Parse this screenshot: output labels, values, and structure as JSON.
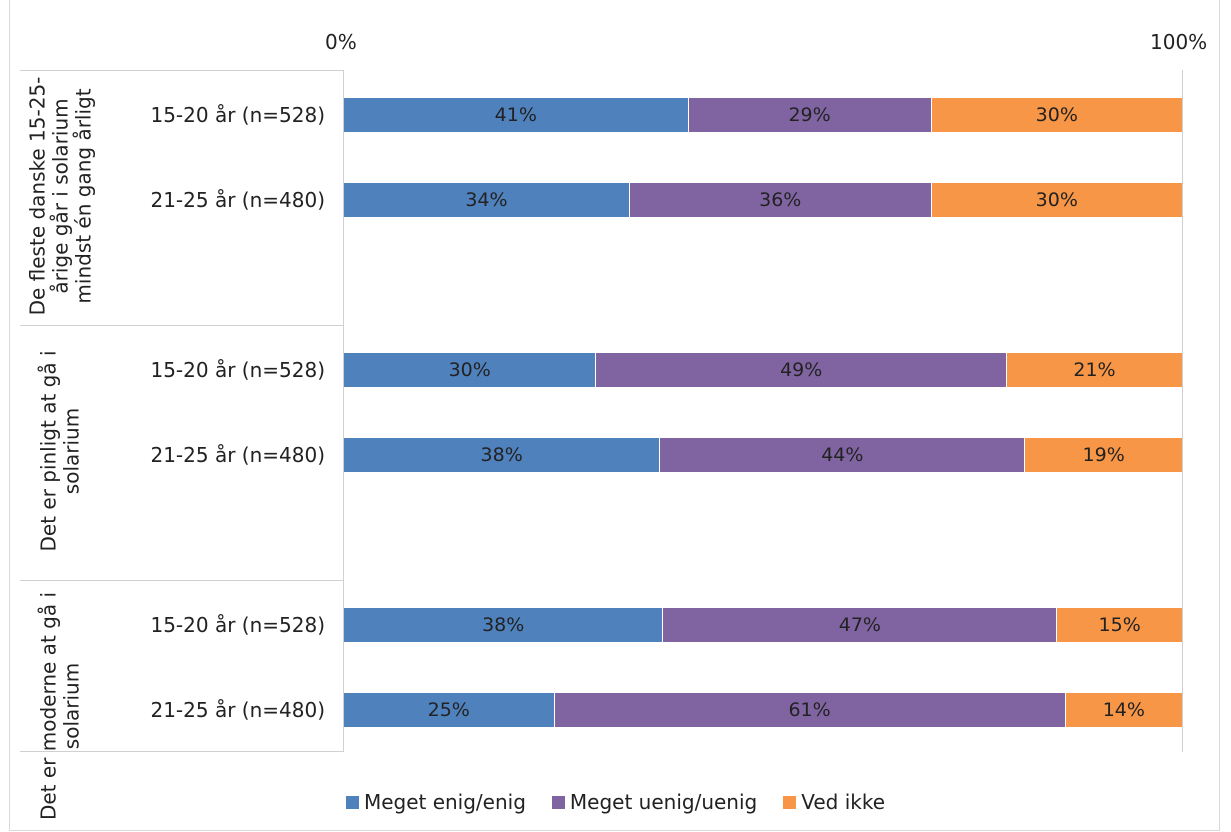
{
  "chart_data": {
    "type": "bar",
    "orientation": "horizontal",
    "stacked": true,
    "title": "",
    "xlim": [
      0,
      100
    ],
    "axis_tick_labels": {
      "min": "0%",
      "max": "100%"
    },
    "legend_position": "bottom",
    "series": [
      {
        "name": "Meget enig/enig",
        "color": "#4f81bd"
      },
      {
        "name": "Meget uenig/uenig",
        "color": "#8064a2"
      },
      {
        "name": "Ved ikke",
        "color": "#f79646"
      }
    ],
    "groups": [
      {
        "label": "De fleste danske 15-25-årige går i solarium mindst én gang årligt",
        "rows": [
          {
            "label": "15-20 år (n=528)",
            "values": [
              41,
              29,
              30
            ],
            "labels": [
              "41%",
              "29%",
              "30%"
            ]
          },
          {
            "label": "21-25 år (n=480)",
            "values": [
              34,
              36,
              30
            ],
            "labels": [
              "34%",
              "36%",
              "30%"
            ]
          }
        ]
      },
      {
        "label": "Det er pinligt at gå i solarium",
        "rows": [
          {
            "label": "15-20 år (n=528)",
            "values": [
              30,
              49,
              21
            ],
            "labels": [
              "30%",
              "49%",
              "21%"
            ]
          },
          {
            "label": "21-25 år (n=480)",
            "values": [
              38,
              44,
              19
            ],
            "labels": [
              "38%",
              "44%",
              "19%"
            ]
          }
        ]
      },
      {
        "label": "Det er moderne at gå i solarium",
        "rows": [
          {
            "label": "15-20 år (n=528)",
            "values": [
              38,
              47,
              15
            ],
            "labels": [
              "38%",
              "47%",
              "15%"
            ]
          },
          {
            "label": "21-25 år (n=480)",
            "values": [
              25,
              61,
              14
            ],
            "labels": [
              "25%",
              "61%",
              "14%"
            ]
          }
        ]
      }
    ]
  }
}
